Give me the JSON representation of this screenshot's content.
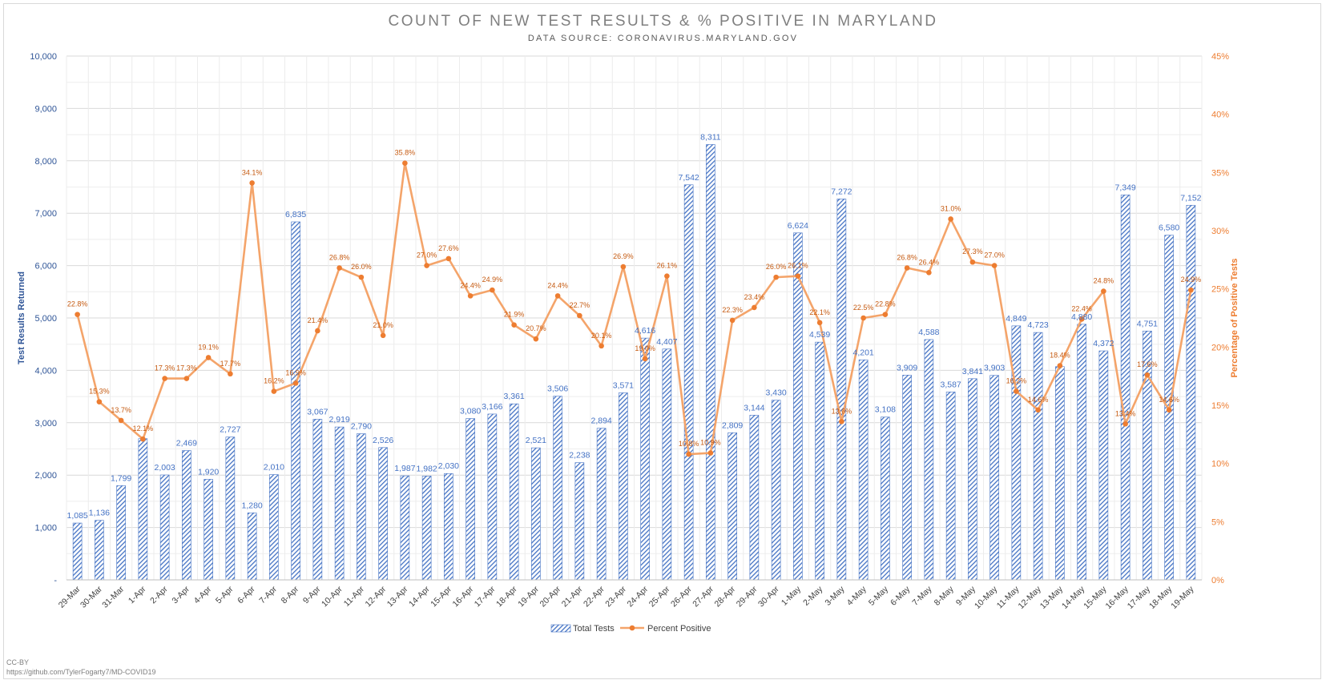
{
  "chart_data": {
    "type": "bar+line",
    "title": "COUNT OF NEW TEST RESULTS & % POSITIVE IN MARYLAND",
    "subtitle": "DATA SOURCE: CORONAVIRUS.MARYLAND.GOV",
    "ylabel_left": "Test Results Returned",
    "ylabel_right": "Percentage of Positive Tests",
    "ylim_left": [
      0,
      10000
    ],
    "ylim_right": [
      0,
      45
    ],
    "left_ticks": [
      "-",
      "1,000",
      "2,000",
      "3,000",
      "4,000",
      "5,000",
      "6,000",
      "7,000",
      "8,000",
      "9,000",
      "10,000"
    ],
    "right_ticks": [
      "0%",
      "5%",
      "10%",
      "15%",
      "20%",
      "25%",
      "30%",
      "35%",
      "40%",
      "45%"
    ],
    "grid": true,
    "legend_position": "bottom",
    "categories": [
      "29-Mar",
      "30-Mar",
      "31-Mar",
      "1-Apr",
      "2-Apr",
      "3-Apr",
      "4-Apr",
      "5-Apr",
      "6-Apr",
      "7-Apr",
      "8-Apr",
      "9-Apr",
      "10-Apr",
      "11-Apr",
      "12-Apr",
      "13-Apr",
      "14-Apr",
      "15-Apr",
      "16-Apr",
      "17-Apr",
      "18-Apr",
      "19-Apr",
      "20-Apr",
      "21-Apr",
      "22-Apr",
      "23-Apr",
      "24-Apr",
      "25-Apr",
      "26-Apr",
      "27-Apr",
      "28-Apr",
      "29-Apr",
      "30-Apr",
      "1-May",
      "2-May",
      "3-May",
      "4-May",
      "5-May",
      "6-May",
      "7-May",
      "8-May",
      "9-May",
      "10-May",
      "11-May",
      "12-May",
      "13-May",
      "14-May",
      "15-May",
      "16-May",
      "17-May",
      "18-May",
      "19-May"
    ],
    "series": [
      {
        "name": "Total Tests",
        "type": "bar",
        "axis": "left",
        "color": "#4472c4",
        "values": [
          1085,
          1136,
          1799,
          2695,
          2003,
          2469,
          1920,
          2727,
          1280,
          2010,
          6835,
          3067,
          2919,
          2790,
          2526,
          1987,
          1982,
          2030,
          3080,
          3166,
          3361,
          2521,
          3506,
          2238,
          2894,
          3571,
          4616,
          4407,
          7542,
          8311,
          2809,
          3144,
          3430,
          6624,
          4539,
          7272,
          4201,
          3108,
          3909,
          4588,
          3587,
          3841,
          3903,
          4849,
          4723,
          4071,
          4880,
          4372,
          7349,
          4751,
          6580,
          7152
        ],
        "labels": [
          "1,085",
          "1,136",
          "1,799",
          "",
          "2,003",
          "2,469",
          "1,920",
          "2,727",
          "1,280",
          "2,010",
          "6,835",
          "3,067",
          "2,919",
          "2,790",
          "2,526",
          "1,987",
          "1,982",
          "2,030",
          "3,080",
          "3,166",
          "3,361",
          "2,521",
          "3,506",
          "2,238",
          "2,894",
          "3,571",
          "4,616",
          "4,407",
          "7,542",
          "8,311",
          "2,809",
          "3,144",
          "3,430",
          "6,624",
          "4,539",
          "7,272",
          "4,201",
          "3,108",
          "3,909",
          "4,588",
          "3,587",
          "3,841",
          "3,903",
          "4,849",
          "4,723",
          "",
          "4,880",
          "4,372",
          "7,349",
          "4,751",
          "6,580",
          "7,152"
        ]
      },
      {
        "name": "Percent Positive",
        "type": "line",
        "axis": "right",
        "color": "#ed7d31",
        "values": [
          22.8,
          15.3,
          13.7,
          12.1,
          17.3,
          17.3,
          19.1,
          17.7,
          34.1,
          16.2,
          16.9,
          21.4,
          26.8,
          26.0,
          21.0,
          35.8,
          27.0,
          27.6,
          24.4,
          24.9,
          21.9,
          20.7,
          24.4,
          22.7,
          20.1,
          26.9,
          19.0,
          26.1,
          10.8,
          10.9,
          22.3,
          23.4,
          26.0,
          26.1,
          22.1,
          13.6,
          22.5,
          22.8,
          26.8,
          26.4,
          31.0,
          27.3,
          27.0,
          16.2,
          14.6,
          18.4,
          22.4,
          24.8,
          13.4,
          17.6,
          14.6,
          24.9
        ],
        "labels": [
          "22.8%",
          "15.3%",
          "13.7%",
          "12.1%",
          "17.3%",
          "17.3%",
          "19.1%",
          "17.7%",
          "34.1%",
          "16.2%",
          "16.9%",
          "21.4%",
          "26.8%",
          "26.0%",
          "21.0%",
          "35.8%",
          "27.0%",
          "27.6%",
          "24.4%",
          "24.9%",
          "21.9%",
          "20.7%",
          "24.4%",
          "22.7%",
          "20.1%",
          "26.9%",
          "19.0%",
          "26.1%",
          "10.8%",
          "10.9%",
          "22.3%",
          "23.4%",
          "26.0%",
          "26.1%",
          "22.1%",
          "13.6%",
          "22.5%",
          "22.8%",
          "26.8%",
          "26.4%",
          "31.0%",
          "27.3%",
          "27.0%",
          "16.2%",
          "14.6%",
          "18.4%",
          "22.4%",
          "24.8%",
          "13.4%",
          "17.6%",
          "14.6%",
          "24.9%"
        ]
      }
    ]
  },
  "footer": {
    "license": "CC-BY",
    "url": "https://github.com/TylerFogarty7/MD-COVID19"
  }
}
